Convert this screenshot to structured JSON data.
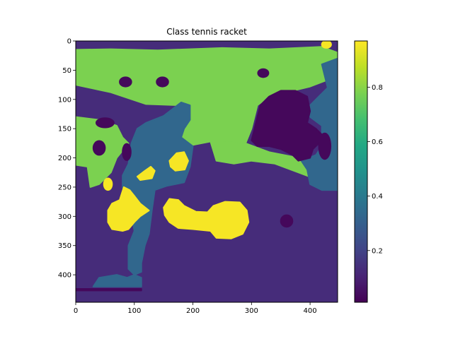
{
  "chart_data": {
    "type": "heatmap",
    "title": "Class tennis racket",
    "xlabel": "",
    "ylabel": "",
    "xlim": [
      0,
      447
    ],
    "ylim": [
      447,
      0
    ],
    "x_ticks": [
      0,
      100,
      200,
      300,
      400
    ],
    "y_ticks": [
      0,
      50,
      100,
      150,
      200,
      250,
      300,
      350,
      400
    ],
    "colorbar": {
      "range": [
        0.01,
        0.97
      ],
      "ticks": [
        0.2,
        0.4,
        0.6,
        0.8
      ],
      "colormap": "viridis"
    },
    "regions": [
      {
        "name": "green-top-band",
        "value": 0.78,
        "shape": "poly",
        "points": [
          [
            0,
            15
          ],
          [
            60,
            14
          ],
          [
            140,
            16
          ],
          [
            250,
            12
          ],
          [
            330,
            14
          ],
          [
            420,
            10
          ],
          [
            447,
            20
          ],
          [
            447,
            60
          ],
          [
            400,
            78
          ],
          [
            330,
            95
          ],
          [
            310,
            110
          ],
          [
            300,
            150
          ],
          [
            290,
            175
          ],
          [
            230,
            172
          ],
          [
            200,
            178
          ],
          [
            180,
            165
          ],
          [
            150,
            150
          ],
          [
            160,
            125
          ],
          [
            180,
            110
          ],
          [
            120,
            108
          ],
          [
            60,
            88
          ],
          [
            0,
            75
          ]
        ]
      },
      {
        "name": "green-left-band",
        "value": 0.78,
        "shape": "poly",
        "points": [
          [
            0,
            130
          ],
          [
            40,
            135
          ],
          [
            70,
            145
          ],
          [
            80,
            165
          ],
          [
            90,
            175
          ],
          [
            70,
            200
          ],
          [
            60,
            225
          ],
          [
            40,
            245
          ],
          [
            25,
            250
          ],
          [
            20,
            215
          ],
          [
            0,
            212
          ]
        ]
      },
      {
        "name": "green-mid-band",
        "value": 0.78,
        "shape": "poly",
        "points": [
          [
            230,
            172
          ],
          [
            290,
            175
          ],
          [
            330,
            190
          ],
          [
            380,
            200
          ],
          [
            420,
            215
          ],
          [
            440,
            238
          ],
          [
            420,
            240
          ],
          [
            380,
            225
          ],
          [
            340,
            210
          ],
          [
            300,
            205
          ],
          [
            270,
            210
          ],
          [
            240,
            205
          ]
        ]
      },
      {
        "name": "blue-vertical-strip",
        "value": 0.33,
        "shape": "poly",
        "points": [
          [
            120,
            140
          ],
          [
            150,
            128
          ],
          [
            180,
            105
          ],
          [
            195,
            110
          ],
          [
            195,
            135
          ],
          [
            185,
            150
          ],
          [
            180,
            165
          ],
          [
            200,
            180
          ],
          [
            195,
            215
          ],
          [
            185,
            242
          ],
          [
            155,
            248
          ],
          [
            135,
            255
          ],
          [
            130,
            290
          ],
          [
            125,
            330
          ],
          [
            118,
            350
          ],
          [
            112,
            380
          ],
          [
            112,
            395
          ],
          [
            88,
            405
          ],
          [
            70,
            400
          ],
          [
            40,
            405
          ],
          [
            30,
            420
          ],
          [
            112,
            420
          ],
          [
            112,
            405
          ],
          [
            100,
            400
          ],
          [
            90,
            390
          ],
          [
            90,
            350
          ],
          [
            100,
            325
          ],
          [
            95,
            295
          ],
          [
            85,
            275
          ],
          [
            80,
            250
          ],
          [
            80,
            230
          ],
          [
            90,
            210
          ],
          [
            95,
            175
          ],
          [
            105,
            150
          ]
        ]
      },
      {
        "name": "blue-right-strip",
        "value": 0.33,
        "shape": "poly",
        "points": [
          [
            420,
            40
          ],
          [
            447,
            30
          ],
          [
            447,
            255
          ],
          [
            420,
            255
          ],
          [
            400,
            245
          ],
          [
            395,
            220
          ],
          [
            385,
            205
          ],
          [
            410,
            195
          ],
          [
            420,
            180
          ],
          [
            420,
            145
          ],
          [
            400,
            130
          ],
          [
            400,
            110
          ],
          [
            415,
            95
          ],
          [
            430,
            80
          ]
        ]
      },
      {
        "name": "dark-right-blob",
        "value": 0.03,
        "shape": "poly",
        "points": [
          [
            330,
            95
          ],
          [
            350,
            85
          ],
          [
            375,
            85
          ],
          [
            395,
            95
          ],
          [
            400,
            120
          ],
          [
            395,
            140
          ],
          [
            410,
            150
          ],
          [
            420,
            160
          ],
          [
            415,
            175
          ],
          [
            405,
            185
          ],
          [
            400,
            200
          ],
          [
            380,
            205
          ],
          [
            370,
            195
          ],
          [
            350,
            185
          ],
          [
            330,
            180
          ],
          [
            310,
            180
          ],
          [
            300,
            170
          ],
          [
            305,
            150
          ],
          [
            310,
            130
          ],
          [
            315,
            110
          ]
        ]
      },
      {
        "name": "yellow-racket-left",
        "value": 0.96,
        "shape": "poly",
        "points": [
          [
            82,
            250
          ],
          [
            92,
            255
          ],
          [
            100,
            265
          ],
          [
            110,
            278
          ],
          [
            125,
            290
          ],
          [
            110,
            300
          ],
          [
            100,
            310
          ],
          [
            90,
            322
          ],
          [
            80,
            325
          ],
          [
            62,
            322
          ],
          [
            55,
            310
          ],
          [
            55,
            290
          ],
          [
            62,
            278
          ],
          [
            75,
            272
          ]
        ]
      },
      {
        "name": "yellow-racket-right",
        "value": 0.96,
        "shape": "poly",
        "points": [
          [
            160,
            270
          ],
          [
            175,
            272
          ],
          [
            185,
            282
          ],
          [
            205,
            292
          ],
          [
            225,
            293
          ],
          [
            235,
            282
          ],
          [
            255,
            275
          ],
          [
            280,
            276
          ],
          [
            292,
            290
          ],
          [
            295,
            310
          ],
          [
            285,
            330
          ],
          [
            265,
            338
          ],
          [
            240,
            337
          ],
          [
            230,
            325
          ],
          [
            200,
            322
          ],
          [
            175,
            320
          ],
          [
            160,
            310
          ],
          [
            152,
            298
          ],
          [
            150,
            285
          ]
        ]
      },
      {
        "name": "yellow-small-1",
        "value": 0.96,
        "shape": "poly",
        "points": [
          [
            105,
            232
          ],
          [
            118,
            222
          ],
          [
            128,
            215
          ],
          [
            135,
            222
          ],
          [
            130,
            235
          ],
          [
            110,
            238
          ]
        ]
      },
      {
        "name": "yellow-small-2",
        "value": 0.96,
        "shape": "poly",
        "points": [
          [
            160,
            205
          ],
          [
            172,
            192
          ],
          [
            185,
            190
          ],
          [
            192,
            205
          ],
          [
            186,
            220
          ],
          [
            170,
            222
          ],
          [
            162,
            215
          ]
        ]
      },
      {
        "name": "yellow-small-3",
        "value": 0.96,
        "shape": "ellipse",
        "cx": 55,
        "cy": 245,
        "rx": 7,
        "ry": 10
      },
      {
        "name": "yellow-corner",
        "value": 0.96,
        "shape": "ellipse",
        "cx": 428,
        "cy": 6,
        "rx": 8,
        "ry": 6
      },
      {
        "name": "dark-spot-1",
        "value": 0.03,
        "shape": "ellipse",
        "cx": 85,
        "cy": 70,
        "rx": 10,
        "ry": 8
      },
      {
        "name": "dark-spot-2",
        "value": 0.03,
        "shape": "ellipse",
        "cx": 148,
        "cy": 70,
        "rx": 10,
        "ry": 8
      },
      {
        "name": "dark-spot-3",
        "value": 0.03,
        "shape": "ellipse",
        "cx": 50,
        "cy": 140,
        "rx": 15,
        "ry": 8
      },
      {
        "name": "dark-spot-4",
        "value": 0.03,
        "shape": "ellipse",
        "cx": 40,
        "cy": 183,
        "rx": 10,
        "ry": 12
      },
      {
        "name": "dark-spot-5",
        "value": 0.03,
        "shape": "ellipse",
        "cx": 87,
        "cy": 190,
        "rx": 7,
        "ry": 14
      },
      {
        "name": "dark-spot-6",
        "value": 0.03,
        "shape": "ellipse",
        "cx": 360,
        "cy": 308,
        "rx": 10,
        "ry": 10
      },
      {
        "name": "dark-spot-7",
        "value": 0.03,
        "shape": "ellipse",
        "cx": 425,
        "cy": 180,
        "rx": 10,
        "ry": 22
      },
      {
        "name": "dark-spot-8",
        "value": 0.03,
        "shape": "ellipse",
        "cx": 320,
        "cy": 55,
        "rx": 9,
        "ry": 7
      },
      {
        "name": "dark-bottom-line",
        "value": 0.03,
        "shape": "poly",
        "points": [
          [
            0,
            424
          ],
          [
            112,
            424
          ],
          [
            112,
            427
          ],
          [
            0,
            427
          ]
        ]
      }
    ],
    "background_value": 0.13
  }
}
